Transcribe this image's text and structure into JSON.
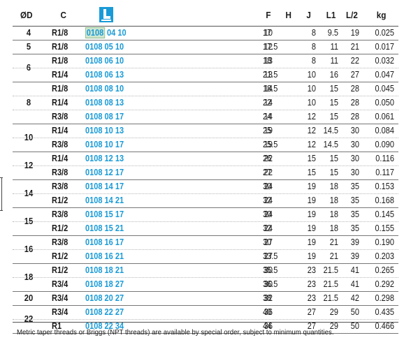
{
  "headers": {
    "od": "ØD",
    "c": "C",
    "logo_icon": "brand-logo-icon",
    "f": "F",
    "h": "H",
    "j": "J",
    "l1": "L1",
    "l2": "L/2",
    "kg": "kg"
  },
  "groups": [
    {
      "od": "4",
      "rows": [
        {
          "c": "R1/8",
          "code_a": "0108",
          "code_b": "04 10",
          "f": "10",
          "h": "17",
          "j": "8",
          "l1": "9.5",
          "l2": "19",
          "kg": "0.025",
          "selected": true
        }
      ]
    },
    {
      "od": "5",
      "rows": [
        {
          "c": "R1/8",
          "code_a": "0108",
          "code_b": "05 10",
          "f": "12",
          "h": "17.5",
          "j": "8",
          "l1": "11",
          "l2": "21",
          "kg": "0.017"
        }
      ]
    },
    {
      "od": "6",
      "rows": [
        {
          "c": "R1/8",
          "code_a": "0108",
          "code_b": "06 10",
          "f": "13",
          "h": "18",
          "j": "8",
          "l1": "11",
          "l2": "22",
          "kg": "0.032"
        },
        {
          "c": "R1/4",
          "code_a": "0108",
          "code_b": "06 13",
          "f": "13",
          "h": "21.5",
          "j": "10",
          "l1": "16",
          "l2": "27",
          "kg": "0.047"
        }
      ]
    },
    {
      "od": "8",
      "rows": [
        {
          "c": "R1/8",
          "code_a": "0108",
          "code_b": "08 10",
          "f": "14",
          "h": "18.5",
          "j": "10",
          "l1": "15",
          "l2": "28",
          "kg": "0.045"
        },
        {
          "c": "R1/4",
          "code_a": "0108",
          "code_b": "08 13",
          "f": "14",
          "h": "22",
          "j": "10",
          "l1": "15",
          "l2": "28",
          "kg": "0.050"
        },
        {
          "c": "R3/8",
          "code_a": "0108",
          "code_b": "08 17",
          "f": "14",
          "h": "24",
          "j": "12",
          "l1": "15",
          "l2": "28",
          "kg": "0.061"
        }
      ]
    },
    {
      "od": "10",
      "rows": [
        {
          "c": "R1/4",
          "code_a": "0108",
          "code_b": "10 13",
          "f": "19",
          "h": "25",
          "j": "12",
          "l1": "14.5",
          "l2": "30",
          "kg": "0.084"
        },
        {
          "c": "R3/8",
          "code_a": "0108",
          "code_b": "10 17",
          "f": "19",
          "h": "25.5",
          "j": "12",
          "l1": "14.5",
          "l2": "30",
          "kg": "0.090"
        }
      ]
    },
    {
      "od": "12",
      "rows": [
        {
          "c": "R1/4",
          "code_a": "0108",
          "code_b": "12 13",
          "f": "22",
          "h": "26",
          "j": "15",
          "l1": "15",
          "l2": "30",
          "kg": "0.116"
        },
        {
          "c": "R3/8",
          "code_a": "0108",
          "code_b": "12 17",
          "f": "22",
          "h": "27",
          "j": "15",
          "l1": "15",
          "l2": "30",
          "kg": "0.117"
        }
      ]
    },
    {
      "od": "14",
      "rows": [
        {
          "c": "R3/8",
          "code_a": "0108",
          "code_b": "14 17",
          "f": "24",
          "h": "30",
          "j": "19",
          "l1": "18",
          "l2": "35",
          "kg": "0.153"
        },
        {
          "c": "R1/2",
          "code_a": "0108",
          "code_b": "14 21",
          "f": "24",
          "h": "32",
          "j": "19",
          "l1": "18",
          "l2": "35",
          "kg": "0.168"
        }
      ]
    },
    {
      "od": "15",
      "rows": [
        {
          "c": "R3/8",
          "code_a": "0108",
          "code_b": "15 17",
          "f": "24",
          "h": "30",
          "j": "19",
          "l1": "18",
          "l2": "35",
          "kg": "0.145"
        },
        {
          "c": "R1/2",
          "code_a": "0108",
          "code_b": "15 21",
          "f": "24",
          "h": "32",
          "j": "19",
          "l1": "18",
          "l2": "35",
          "kg": "0.155"
        }
      ]
    },
    {
      "od": "16",
      "rows": [
        {
          "c": "R3/8",
          "code_a": "0108",
          "code_b": "16 17",
          "f": "27",
          "h": "30",
          "j": "19",
          "l1": "21",
          "l2": "39",
          "kg": "0.190"
        },
        {
          "c": "R1/2",
          "code_a": "0108",
          "code_b": "16 21",
          "f": "27",
          "h": "33.5",
          "j": "19",
          "l1": "21",
          "l2": "39",
          "kg": "0.203"
        }
      ]
    },
    {
      "od": "18",
      "rows": [
        {
          "c": "R1/2",
          "code_a": "0108",
          "code_b": "18 21",
          "f": "30",
          "h": "35.5",
          "j": "23",
          "l1": "21.5",
          "l2": "41",
          "kg": "0.265"
        },
        {
          "c": "R3/4",
          "code_a": "0108",
          "code_b": "18 27",
          "f": "30",
          "h": "36.5",
          "j": "23",
          "l1": "21.5",
          "l2": "41",
          "kg": "0.292"
        }
      ]
    },
    {
      "od": "20",
      "rows": [
        {
          "c": "R3/4",
          "code_a": "0108",
          "code_b": "20 27",
          "f": "32",
          "h": "38",
          "j": "23",
          "l1": "21.5",
          "l2": "42",
          "kg": "0.298"
        }
      ]
    },
    {
      "od": "22",
      "rows": [
        {
          "c": "R3/4",
          "code_a": "0108",
          "code_b": "22 27",
          "f": "36",
          "h": "40",
          "j": "27",
          "l1": "29",
          "l2": "50",
          "kg": "0.435"
        },
        {
          "c": "R1",
          "code_a": "0108",
          "code_b": "22 34",
          "f": "36",
          "h": "44",
          "j": "27",
          "l1": "29",
          "l2": "50",
          "kg": "0.466"
        }
      ]
    }
  ],
  "footnote": "Metric taper threads or Briggs (NPT threads) are available by special order, subject to minimum quantities.",
  "colors": {
    "code_blue": "#1a9bd7",
    "highlight_green": "#cfe6cf"
  }
}
